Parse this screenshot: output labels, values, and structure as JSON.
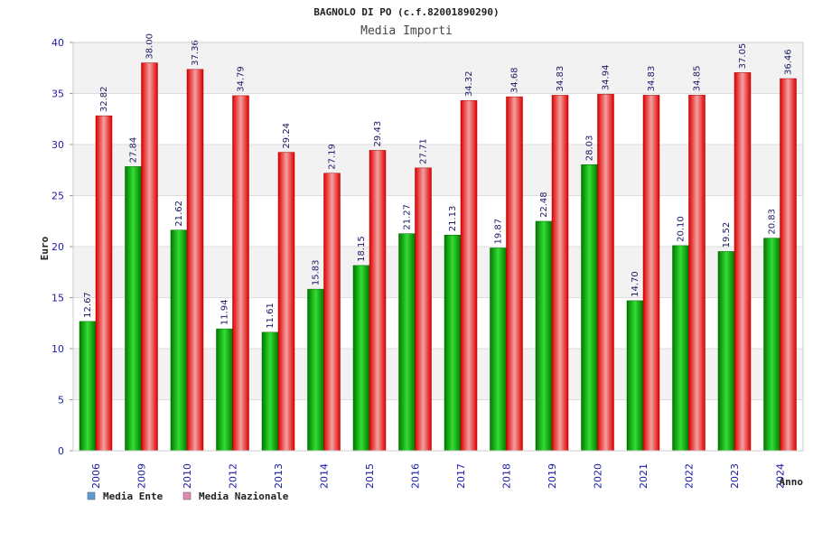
{
  "chart_data": {
    "type": "bar",
    "title": "BAGNOLO DI PO (c.f.82001890290)",
    "subtitle": "Media Importi",
    "ylabel": "Euro",
    "xlabel": "Anno",
    "ylim": [
      0,
      40
    ],
    "yticks": [
      0,
      5,
      10,
      15,
      20,
      25,
      30,
      35,
      40
    ],
    "grid": true,
    "legend_position": "bottom-left",
    "categories": [
      "2006",
      "2009",
      "2010",
      "2012",
      "2013",
      "2014",
      "2015",
      "2016",
      "2017",
      "2018",
      "2019",
      "2020",
      "2021",
      "2022",
      "2023",
      "2024"
    ],
    "series": [
      {
        "name": "Media Ente",
        "color": "#00aa00",
        "legend_color": "#5b9bd5",
        "values": [
          12.67,
          27.84,
          21.62,
          11.94,
          11.61,
          15.83,
          18.15,
          21.27,
          21.13,
          19.87,
          22.48,
          28.03,
          14.7,
          20.1,
          19.52,
          20.83
        ],
        "labels": [
          "12.67",
          "27.84",
          "21.62",
          "11.94",
          "11.61",
          "15.83",
          "18.15",
          "21.27",
          "21.13",
          "19.87",
          "22.48",
          "28.03",
          "14.70",
          "20.10",
          "19.52",
          "20.83"
        ]
      },
      {
        "name": "Media Nazionale",
        "color": "#ee1111",
        "legend_color": "#e08ab0",
        "values": [
          32.82,
          38.0,
          37.36,
          34.79,
          29.24,
          27.19,
          29.43,
          27.71,
          34.32,
          34.68,
          34.83,
          34.94,
          34.83,
          34.85,
          37.05,
          36.46
        ],
        "labels": [
          "32.82",
          "38.00",
          "37.36",
          "34.79",
          "29.24",
          "27.19",
          "29.43",
          "27.71",
          "34.32",
          "34.68",
          "34.83",
          "34.94",
          "34.83",
          "34.85",
          "37.05",
          "36.46"
        ]
      }
    ]
  }
}
